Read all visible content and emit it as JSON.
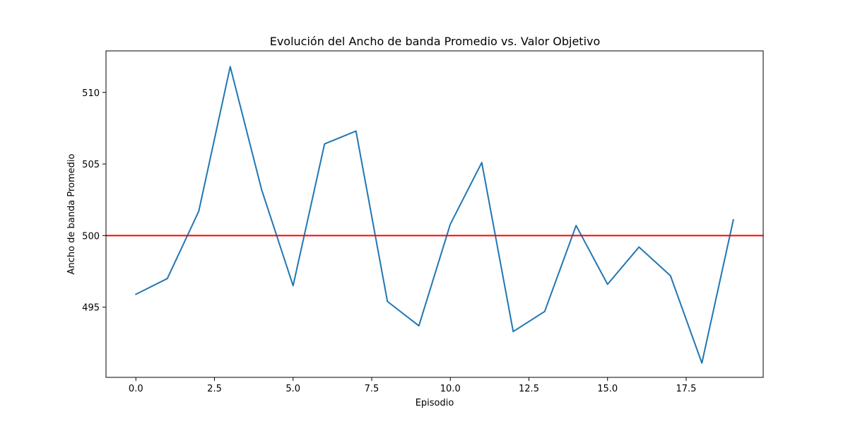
{
  "chart_data": {
    "type": "line",
    "title": "Evolución del Ancho de banda Promedio vs. Valor Objetivo",
    "xlabel": "Episodio",
    "ylabel": "Ancho de banda Promedio",
    "xlim": [
      -0.95,
      19.95
    ],
    "ylim": [
      490.1,
      512.9
    ],
    "xticks": [
      0.0,
      2.5,
      5.0,
      7.5,
      10.0,
      12.5,
      15.0,
      17.5
    ],
    "xtick_labels": [
      "0.0",
      "2.5",
      "5.0",
      "7.5",
      "10.0",
      "12.5",
      "15.0",
      "17.5"
    ],
    "yticks": [
      495,
      500,
      505,
      510
    ],
    "ytick_labels": [
      "495",
      "500",
      "505",
      "510"
    ],
    "grid": false,
    "series": [
      {
        "color": "#1f77b4",
        "x": [
          0,
          1,
          2,
          3,
          4,
          5,
          6,
          7,
          8,
          9,
          10,
          11,
          12,
          13,
          14,
          15,
          16,
          17,
          18,
          19
        ],
        "y": [
          495.9,
          497.0,
          501.7,
          511.8,
          503.2,
          496.5,
          506.4,
          507.3,
          495.4,
          493.7,
          500.8,
          505.1,
          493.3,
          494.7,
          500.7,
          496.6,
          499.2,
          497.2,
          491.1,
          501.1
        ]
      }
    ],
    "reference_lines": [
      {
        "orientation": "horizontal",
        "y": 500,
        "color": "#ff0000"
      }
    ]
  }
}
